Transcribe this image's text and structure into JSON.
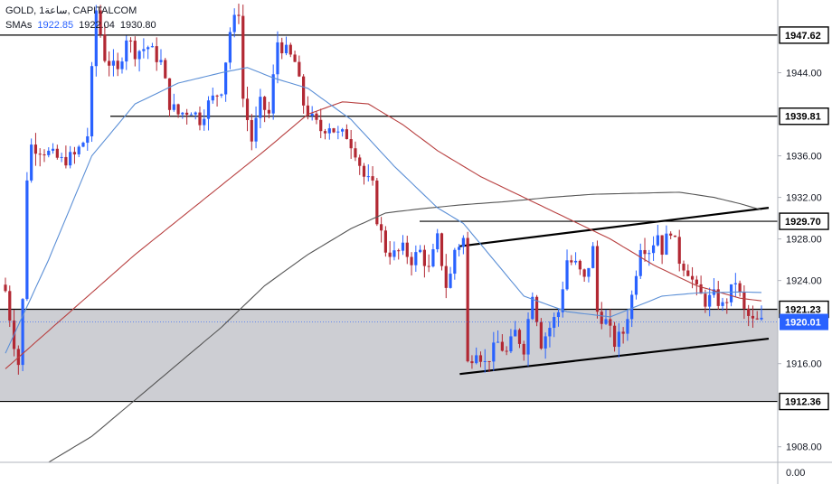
{
  "header": {
    "symbol": "GOLD, 1ساعة, CAPITALCOM",
    "sma_label": "SMAs",
    "sma_values": [
      "1922.85",
      "1922.04",
      "1930.80"
    ]
  },
  "colors": {
    "up": "#2962ff",
    "down": "#b22833",
    "sma_fast": "#5b8fd6",
    "sma_mid": "#b84040",
    "sma_slow": "#555555",
    "zone": "#c4c6cb",
    "badge_bg": "#ffffff",
    "current_badge": "#2962ff"
  },
  "chart_data": {
    "type": "candlestick",
    "y_ticks": [
      "1944.00",
      "1936.00",
      "1932.00",
      "1928.00",
      "1924.00",
      "1916.00",
      "1908.00"
    ],
    "y_tick_values": [
      1944,
      1936,
      1932,
      1928,
      1924,
      1916,
      1908
    ],
    "price_range": [
      1906.5,
      1951.0
    ],
    "bottom_label": "0.00",
    "horizontal_levels": [
      {
        "label": "1947.62",
        "value": 1947.62
      },
      {
        "label": "1939.81",
        "value": 1939.81
      },
      {
        "label": "1929.70",
        "value": 1929.7
      },
      {
        "label": "1921.23",
        "value": 1921.23
      },
      {
        "label": "1912.36",
        "value": 1912.36
      }
    ],
    "current_price": {
      "label": "1920.01",
      "value": 1920.01
    },
    "zone": {
      "from": 1912.36,
      "to": 1921.23
    },
    "trendlines": [
      {
        "name": "channel-upper",
        "points": [
          [
            106,
            1927.3
          ],
          [
            175,
            1931.0
          ]
        ]
      },
      {
        "name": "channel-lower",
        "points": [
          [
            106,
            1915.0
          ],
          [
            175,
            1918.4
          ]
        ]
      }
    ],
    "candle_count": 176,
    "anchors": [
      [
        0,
        1923.0
      ],
      [
        2,
        1918.0
      ],
      [
        3,
        1916.0
      ],
      [
        4,
        1922.0
      ],
      [
        5,
        1934.0
      ],
      [
        6,
        1937.0
      ],
      [
        9,
        1936.5
      ],
      [
        13,
        1935.5
      ],
      [
        16,
        1936.0
      ],
      [
        19,
        1938.0
      ],
      [
        21,
        1950.0
      ],
      [
        23,
        1945.5
      ],
      [
        26,
        1944.0
      ],
      [
        28,
        1947.5
      ],
      [
        30,
        1946.0
      ],
      [
        33,
        1946.5
      ],
      [
        36,
        1945.0
      ],
      [
        38,
        1941.0
      ],
      [
        40,
        1940.0
      ],
      [
        43,
        1940.5
      ],
      [
        45,
        1939.5
      ],
      [
        47,
        1941.0
      ],
      [
        50,
        1942.5
      ],
      [
        52,
        1948.0
      ],
      [
        54,
        1950.0
      ],
      [
        55,
        1941.5
      ],
      [
        57,
        1937.5
      ],
      [
        59,
        1941.0
      ],
      [
        61,
        1940.0
      ],
      [
        63,
        1947.0
      ],
      [
        65,
        1946.0
      ],
      [
        67,
        1945.0
      ],
      [
        69,
        1941.0
      ],
      [
        71,
        1939.5
      ],
      [
        73,
        1938.5
      ],
      [
        75,
        1939.0
      ],
      [
        77,
        1938.0
      ],
      [
        79,
        1938.0
      ],
      [
        81,
        1936.5
      ],
      [
        83,
        1934.0
      ],
      [
        85,
        1933.0
      ],
      [
        86,
        1930.0
      ],
      [
        88,
        1927.0
      ],
      [
        90,
        1926.5
      ],
      [
        92,
        1927.0
      ],
      [
        94,
        1926.0
      ],
      [
        96,
        1926.8
      ],
      [
        98,
        1925.0
      ],
      [
        100,
        1928.0
      ],
      [
        102,
        1923.5
      ],
      [
        103,
        1924.5
      ],
      [
        104,
        1927.0
      ],
      [
        106,
        1928.0
      ],
      [
        107,
        1916.0
      ],
      [
        109,
        1917.5
      ],
      [
        111,
        1916.0
      ],
      [
        114,
        1918.0
      ],
      [
        116,
        1917.0
      ],
      [
        118,
        1919.0
      ],
      [
        120,
        1917.5
      ],
      [
        122,
        1923.0
      ],
      [
        124,
        1918.0
      ],
      [
        126,
        1919.5
      ],
      [
        128,
        1921.0
      ],
      [
        130,
        1926.0
      ],
      [
        132,
        1925.5
      ],
      [
        134,
        1924.0
      ],
      [
        136,
        1927.0
      ],
      [
        137,
        1921.0
      ],
      [
        139,
        1920.0
      ],
      [
        141,
        1918.0
      ],
      [
        143,
        1919.0
      ],
      [
        145,
        1922.5
      ],
      [
        147,
        1927.5
      ],
      [
        149,
        1927.0
      ],
      [
        151,
        1928.5
      ],
      [
        152,
        1927.0
      ],
      [
        154,
        1929.0
      ],
      [
        156,
        1926.0
      ],
      [
        158,
        1925.0
      ],
      [
        160,
        1923.0
      ],
      [
        162,
        1922.0
      ],
      [
        164,
        1922.5
      ],
      [
        166,
        1921.5
      ],
      [
        168,
        1923.0
      ],
      [
        169,
        1924.0
      ],
      [
        171,
        1921.0
      ],
      [
        173,
        1920.0
      ],
      [
        175,
        1920.01
      ]
    ],
    "sma_fast_anchors": [
      [
        0,
        1917.0
      ],
      [
        10,
        1926.0
      ],
      [
        20,
        1936.0
      ],
      [
        30,
        1941.0
      ],
      [
        40,
        1943.0
      ],
      [
        50,
        1944.0
      ],
      [
        56,
        1944.5
      ],
      [
        62,
        1943.5
      ],
      [
        70,
        1942.5
      ],
      [
        80,
        1939.5
      ],
      [
        90,
        1935.0
      ],
      [
        100,
        1931.0
      ],
      [
        106,
        1929.5
      ],
      [
        114,
        1925.5
      ],
      [
        120,
        1922.5
      ],
      [
        130,
        1921.0
      ],
      [
        140,
        1920.5
      ],
      [
        146,
        1921.5
      ],
      [
        152,
        1922.5
      ],
      [
        160,
        1922.8
      ],
      [
        170,
        1922.9
      ],
      [
        175,
        1922.85
      ]
    ],
    "sma_mid_anchors": [
      [
        0,
        1915.5
      ],
      [
        15,
        1921.0
      ],
      [
        30,
        1926.5
      ],
      [
        45,
        1931.5
      ],
      [
        60,
        1936.5
      ],
      [
        70,
        1940.0
      ],
      [
        78,
        1941.2
      ],
      [
        84,
        1941.0
      ],
      [
        92,
        1939.0
      ],
      [
        100,
        1936.5
      ],
      [
        110,
        1934.0
      ],
      [
        120,
        1932.0
      ],
      [
        130,
        1930.0
      ],
      [
        140,
        1928.0
      ],
      [
        150,
        1925.5
      ],
      [
        160,
        1923.5
      ],
      [
        170,
        1922.3
      ],
      [
        175,
        1922.04
      ]
    ],
    "sma_slow_anchors": [
      [
        10,
        1906.5
      ],
      [
        20,
        1909.0
      ],
      [
        30,
        1912.5
      ],
      [
        40,
        1916.0
      ],
      [
        50,
        1919.5
      ],
      [
        60,
        1923.5
      ],
      [
        70,
        1926.5
      ],
      [
        80,
        1929.0
      ],
      [
        88,
        1930.5
      ],
      [
        96,
        1930.9
      ],
      [
        106,
        1931.3
      ],
      [
        116,
        1931.6
      ],
      [
        126,
        1932.0
      ],
      [
        136,
        1932.3
      ],
      [
        146,
        1932.4
      ],
      [
        156,
        1932.5
      ],
      [
        164,
        1932.0
      ],
      [
        170,
        1931.4
      ],
      [
        175,
        1930.8
      ]
    ]
  }
}
